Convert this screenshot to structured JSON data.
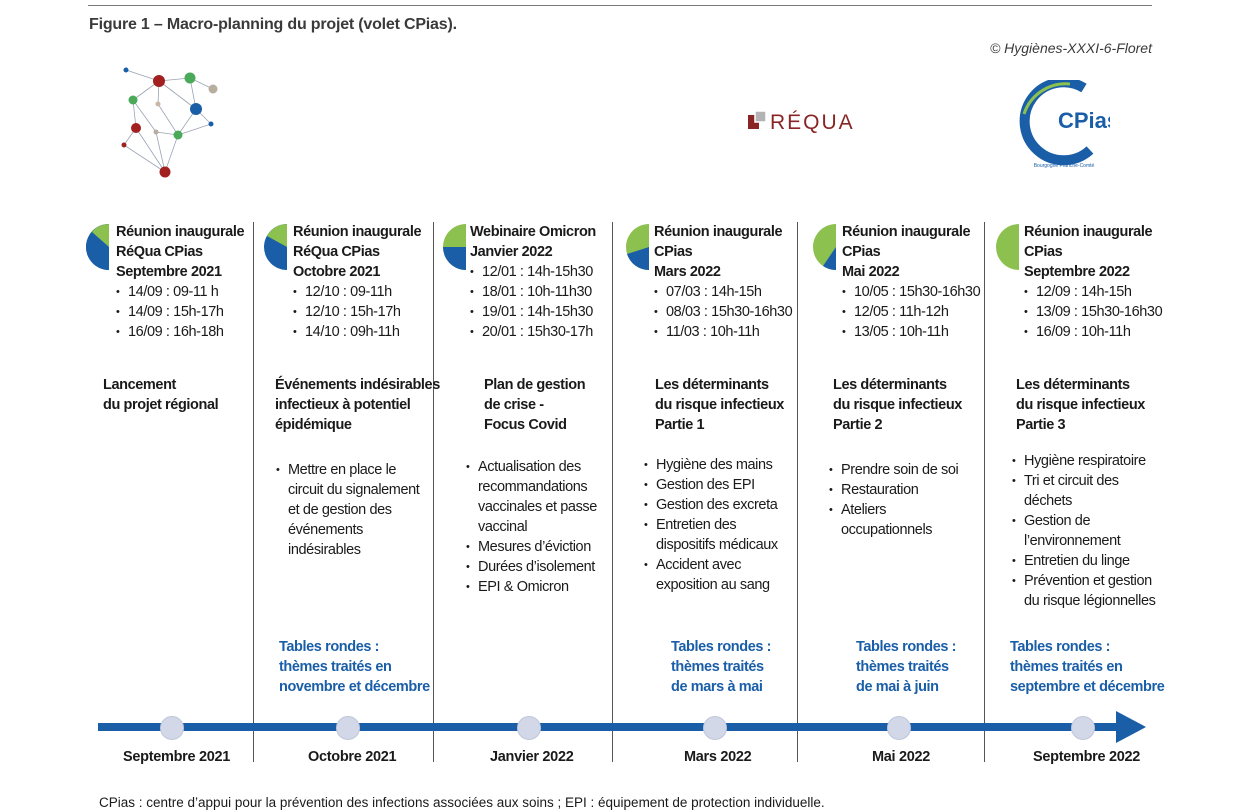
{
  "figure_title": "Figure 1 – Macro-planning du projet (volet CPias).",
  "credit": "© Hygiènes-XXXI-6-Floret",
  "logos": {
    "requa": "RéQua",
    "cpias": "CPias",
    "cpias_sub": "Bourgogne Franche-Comté"
  },
  "colors": {
    "blue": "#1a5ea8",
    "green": "#8cc04f",
    "dark_red": "#a22020"
  },
  "columns": [
    {
      "heading": [
        "Réunion inaugurale",
        "RéQua CPias",
        "Septembre 2021"
      ],
      "dates": [
        "14/09 : 09-11 h",
        "14/09 : 15h-17h",
        "16/09 : 16h-18h"
      ],
      "theme": [
        "Lancement",
        "du projet régional"
      ],
      "topics": [],
      "tables": [],
      "month": "Septembre 2021"
    },
    {
      "heading": [
        "Réunion inaugurale",
        "RéQua CPias",
        "Octobre 2021"
      ],
      "dates": [
        "12/10 : 09-11h",
        "12/10 : 15h-17h",
        "14/10 : 09h-11h"
      ],
      "theme": [
        "Événements indésirables",
        "infectieux à potentiel",
        "épidémique"
      ],
      "topics": [
        "Mettre en place le\ncircuit du signalement\net de gestion des\névénements\nindésirables"
      ],
      "tables": [
        "Tables rondes :",
        "thèmes traités en",
        "novembre et décembre"
      ],
      "month": "Octobre 2021"
    },
    {
      "heading": [
        "Webinaire Omicron",
        "Janvier 2022"
      ],
      "dates": [
        "12/01 : 14h-15h30",
        "18/01 : 10h-11h30",
        "19/01 : 14h-15h30",
        "20/01 : 15h30-17h"
      ],
      "theme": [
        "Plan de gestion",
        "de crise -",
        "Focus Covid"
      ],
      "topics": [
        "Actualisation des\nrecommandations\nvaccinales et passe\nvaccinal",
        "Mesures d’éviction",
        "Durées d’isolement",
        "EPI & Omicron"
      ],
      "tables": [],
      "month": "Janvier 2022"
    },
    {
      "heading": [
        "Réunion inaugurale",
        "CPias",
        "Mars 2022"
      ],
      "dates": [
        "07/03 : 14h-15h",
        "08/03 : 15h30-16h30",
        "11/03 : 10h-11h"
      ],
      "theme": [
        "Les déterminants",
        "du risque infectieux",
        "Partie 1"
      ],
      "topics": [
        "Hygiène des mains",
        "Gestion des EPI",
        "Gestion des excreta",
        "Entretien des\ndispositifs médicaux",
        "Accident avec\nexposition au sang"
      ],
      "tables": [
        "Tables rondes :",
        "thèmes traités",
        "de mars à mai"
      ],
      "month": "Mars 2022"
    },
    {
      "heading": [
        "Réunion inaugurale",
        "CPias",
        "Mai 2022"
      ],
      "dates": [
        "10/05 : 15h30-16h30",
        "12/05 : 11h-12h",
        "13/05 : 10h-11h"
      ],
      "theme": [
        "Les déterminants",
        "du risque infectieux",
        "Partie 2"
      ],
      "topics": [
        "Prendre soin de soi",
        "Restauration",
        "Ateliers\noccupationnels"
      ],
      "tables": [
        "Tables rondes :",
        "thèmes traités",
        "de mai à juin"
      ],
      "month": "Mai 2022"
    },
    {
      "heading": [
        "Réunion inaugurale",
        "CPias",
        "Septembre 2022"
      ],
      "dates": [
        "12/09 : 14h-15h",
        "13/09 : 15h30-16h30",
        "16/09 : 10h-11h"
      ],
      "theme": [
        "Les déterminants",
        "du risque infectieux",
        "Partie 3"
      ],
      "topics": [
        "Hygiène respiratoire",
        "Tri et circuit des\ndéchets",
        "Gestion de\nl’environnement",
        "Entretien du linge",
        "Prévention et gestion\ndu risque légionnelles"
      ],
      "tables": [
        "Tables rondes :",
        "thèmes traités en",
        "septembre et décembre"
      ],
      "month": "Septembre 2022"
    }
  ],
  "footnote": "CPias : centre d’appui pour la prévention des infections associées aux soins ; EPI : équipement de protection individuelle."
}
